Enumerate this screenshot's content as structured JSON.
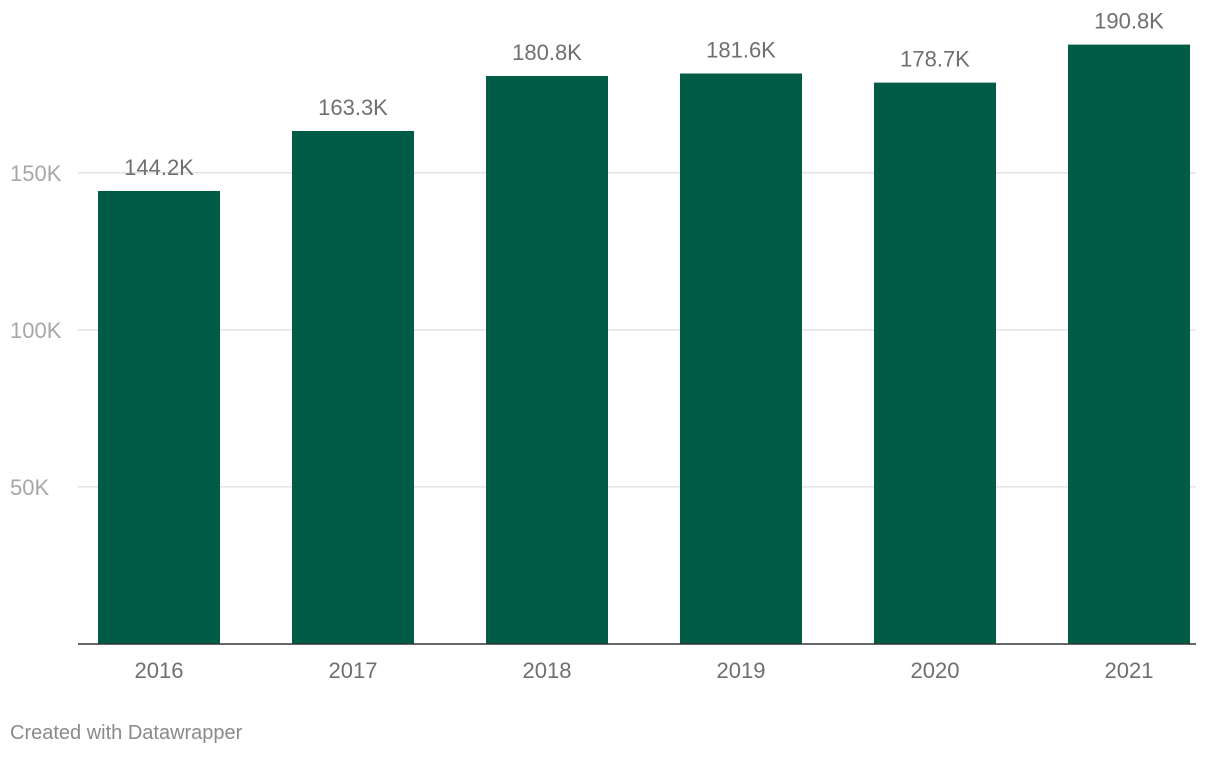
{
  "chart_data": {
    "type": "bar",
    "categories": [
      "2016",
      "2017",
      "2018",
      "2019",
      "2020",
      "2021"
    ],
    "values": [
      144200,
      163300,
      180800,
      181600,
      178700,
      190800
    ],
    "data_labels": [
      "144.2K",
      "163.3K",
      "180.8K",
      "181.6K",
      "178.7K",
      "190.8K"
    ],
    "y_ticks": [
      {
        "value": 50000,
        "label": "50K"
      },
      {
        "value": 100000,
        "label": "100K"
      },
      {
        "value": 150000,
        "label": "150K"
      }
    ],
    "ylim": [
      0,
      200000
    ],
    "grid": true,
    "bar_color": "#005c46",
    "title": "",
    "xlabel": "",
    "ylabel": ""
  },
  "footer": {
    "credit": "Created with Datawrapper"
  }
}
